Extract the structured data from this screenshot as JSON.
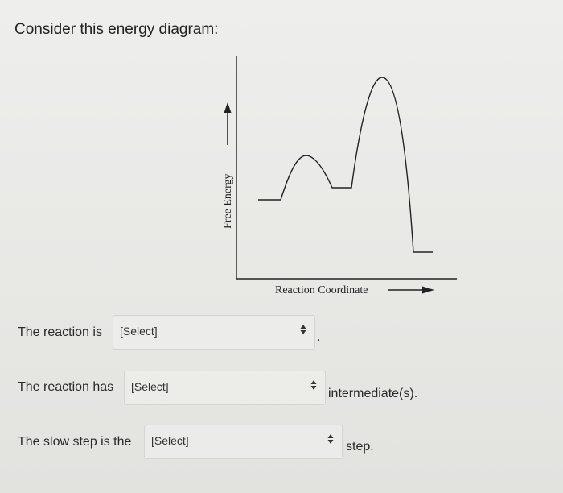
{
  "heading": "Consider this energy diagram:",
  "diagram": {
    "y_axis_label": "Free Energy",
    "x_axis_label": "Reaction Coordinate"
  },
  "questions": [
    {
      "prefix": "The reaction is",
      "selected": "[Select]",
      "suffix": "."
    },
    {
      "prefix": "The reaction has",
      "selected": "[Select]",
      "suffix": "intermediate(s)."
    },
    {
      "prefix": "The slow step is the",
      "selected": "[Select]",
      "suffix": "step."
    }
  ],
  "icons": {
    "dropdown": "up-down-chevron-icon",
    "axis_arrow": "arrow-icon"
  }
}
